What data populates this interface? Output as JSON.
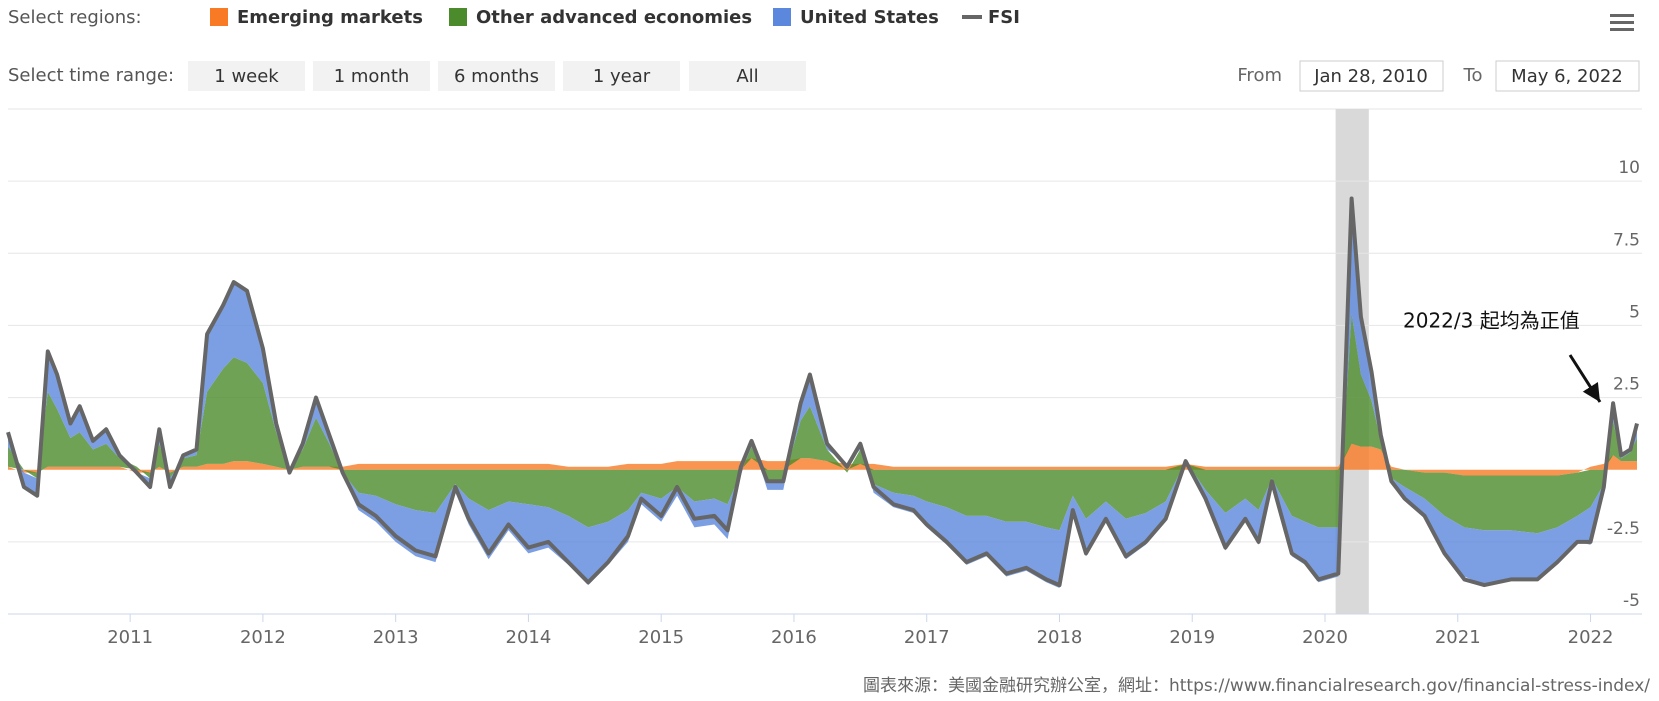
{
  "ui": {
    "regions_label": "Select regions:",
    "range_label": "Select time range:",
    "range_buttons": [
      "1 week",
      "1 month",
      "6 months",
      "1 year",
      "All"
    ],
    "from_label": "From",
    "from_value": "Jan 28, 2010",
    "to_label": "To",
    "to_value": "May 6, 2022"
  },
  "chart_data": {
    "type": "area",
    "stacked": true,
    "x": [
      2010.08,
      2010.2,
      2010.3,
      2010.38,
      2010.45,
      2010.55,
      2010.62,
      2010.72,
      2010.82,
      2010.92,
      2011.05,
      2011.15,
      2011.22,
      2011.3,
      2011.4,
      2011.5,
      2011.58,
      2011.7,
      2011.78,
      2011.88,
      2012.0,
      2012.1,
      2012.2,
      2012.3,
      2012.4,
      2012.5,
      2012.6,
      2012.72,
      2012.85,
      2013.0,
      2013.15,
      2013.3,
      2013.45,
      2013.55,
      2013.7,
      2013.85,
      2014.0,
      2014.15,
      2014.3,
      2014.45,
      2014.6,
      2014.75,
      2014.85,
      2015.0,
      2015.12,
      2015.25,
      2015.4,
      2015.5,
      2015.6,
      2015.68,
      2015.8,
      2015.92,
      2016.05,
      2016.12,
      2016.25,
      2016.4,
      2016.5,
      2016.6,
      2016.75,
      2016.9,
      2017.0,
      2017.15,
      2017.3,
      2017.45,
      2017.6,
      2017.75,
      2017.9,
      2018.0,
      2018.1,
      2018.2,
      2018.35,
      2018.5,
      2018.65,
      2018.8,
      2018.95,
      2019.1,
      2019.25,
      2019.4,
      2019.5,
      2019.6,
      2019.75,
      2019.85,
      2019.95,
      2020.1,
      2020.2,
      2020.27,
      2020.35,
      2020.42,
      2020.5,
      2020.6,
      2020.75,
      2020.9,
      2021.05,
      2021.2,
      2021.4,
      2021.6,
      2021.75,
      2021.9,
      2022.0,
      2022.1,
      2022.17,
      2022.23,
      2022.3,
      2022.35
    ],
    "series": [
      {
        "name": "Emerging markets",
        "color": "#f87a24",
        "values": [
          0.1,
          -0.1,
          -0.1,
          0.1,
          0.1,
          0.1,
          0.1,
          0.1,
          0.1,
          0.1,
          -0.1,
          -0.1,
          0.1,
          -0.1,
          0.1,
          0.1,
          0.2,
          0.2,
          0.3,
          0.3,
          0.2,
          0.1,
          0.0,
          0.1,
          0.1,
          0.1,
          0.1,
          0.2,
          0.2,
          0.2,
          0.2,
          0.2,
          0.2,
          0.2,
          0.2,
          0.2,
          0.2,
          0.2,
          0.1,
          0.1,
          0.1,
          0.2,
          0.2,
          0.2,
          0.3,
          0.3,
          0.3,
          0.3,
          0.3,
          0.4,
          0.3,
          0.3,
          0.4,
          0.4,
          0.3,
          0.2,
          0.2,
          0.2,
          0.1,
          0.1,
          0.1,
          0.1,
          0.1,
          0.1,
          0.1,
          0.1,
          0.1,
          0.1,
          0.1,
          0.1,
          0.1,
          0.1,
          0.1,
          0.1,
          0.2,
          0.1,
          0.1,
          0.1,
          0.1,
          0.1,
          0.1,
          0.1,
          0.1,
          0.1,
          0.9,
          0.8,
          0.8,
          0.7,
          0.1,
          0.0,
          -0.1,
          -0.1,
          -0.2,
          -0.2,
          -0.2,
          -0.2,
          -0.2,
          -0.1,
          0.1,
          0.2,
          0.5,
          0.3,
          0.3,
          0.3
        ]
      },
      {
        "name": "Other advanced economies",
        "color": "#4b8b2b",
        "values": [
          0.7,
          0.0,
          -0.2,
          2.6,
          2.0,
          1.0,
          1.2,
          0.6,
          0.8,
          0.3,
          0.1,
          -0.2,
          0.8,
          -0.2,
          0.3,
          0.4,
          2.5,
          3.3,
          3.6,
          3.4,
          2.8,
          1.2,
          0.0,
          0.6,
          1.7,
          0.8,
          -0.1,
          -0.8,
          -0.9,
          -1.2,
          -1.4,
          -1.5,
          -0.5,
          -1.0,
          -1.4,
          -1.1,
          -1.2,
          -1.3,
          -1.6,
          -2.0,
          -1.8,
          -1.4,
          -0.8,
          -1.0,
          -0.6,
          -1.1,
          -1.0,
          -1.2,
          -0.1,
          0.4,
          -0.4,
          -0.4,
          1.3,
          1.8,
          0.4,
          -0.1,
          0.5,
          -0.5,
          -0.8,
          -0.9,
          -1.1,
          -1.3,
          -1.6,
          -1.6,
          -1.8,
          -1.8,
          -2.0,
          -2.1,
          -0.9,
          -1.7,
          -1.1,
          -1.7,
          -1.5,
          -1.1,
          0.1,
          -0.7,
          -1.5,
          -1.0,
          -1.4,
          -0.3,
          -1.6,
          -1.8,
          -2.0,
          -2.0,
          4.5,
          2.5,
          1.6,
          0.3,
          -0.3,
          -0.6,
          -0.9,
          -1.5,
          -1.8,
          -1.9,
          -1.9,
          -2.0,
          -1.8,
          -1.5,
          -1.3,
          -0.5,
          1.2,
          0.1,
          0.3,
          0.8
        ]
      },
      {
        "name": "United States",
        "color": "#5b87dc",
        "values": [
          0.5,
          -0.5,
          -0.6,
          1.4,
          1.2,
          0.5,
          0.9,
          0.3,
          0.5,
          0.1,
          -0.1,
          -0.3,
          0.5,
          -0.3,
          0.1,
          0.2,
          2.0,
          2.2,
          2.6,
          2.5,
          1.2,
          0.3,
          -0.1,
          0.2,
          0.7,
          0.3,
          -0.1,
          -0.6,
          -0.9,
          -1.3,
          -1.6,
          -1.7,
          -0.3,
          -0.9,
          -1.7,
          -1.0,
          -1.7,
          -1.4,
          -1.7,
          -2.0,
          -1.5,
          -1.1,
          -0.4,
          -0.8,
          -0.3,
          -0.9,
          -0.9,
          -1.2,
          -0.1,
          0.2,
          -0.3,
          -0.3,
          0.6,
          1.1,
          0.2,
          0.0,
          0.2,
          -0.3,
          -0.5,
          -0.6,
          -0.9,
          -1.3,
          -1.7,
          -1.4,
          -1.9,
          -1.7,
          -1.9,
          -2.0,
          -0.6,
          -1.3,
          -0.7,
          -1.4,
          -1.1,
          -0.7,
          0.0,
          -0.4,
          -1.3,
          -0.8,
          -1.2,
          -0.2,
          -1.4,
          -1.5,
          -1.9,
          -1.7,
          4.0,
          2.0,
          1.0,
          0.2,
          -0.2,
          -0.4,
          -0.6,
          -1.3,
          -1.7,
          -1.9,
          -1.7,
          -1.6,
          -1.2,
          -0.9,
          -1.3,
          -0.3,
          0.6,
          0.1,
          0.1,
          0.5
        ]
      },
      {
        "name": "FSI",
        "color": "#666666",
        "type": "line",
        "values": [
          1.3,
          -0.6,
          -0.9,
          4.1,
          3.3,
          1.6,
          2.2,
          1.0,
          1.4,
          0.5,
          -0.1,
          -0.6,
          1.4,
          -0.6,
          0.5,
          0.7,
          4.7,
          5.7,
          6.5,
          6.2,
          4.2,
          1.6,
          -0.1,
          0.9,
          2.5,
          1.2,
          -0.1,
          -1.2,
          -1.6,
          -2.3,
          -2.8,
          -3.0,
          -0.6,
          -1.7,
          -2.9,
          -1.9,
          -2.7,
          -2.5,
          -3.2,
          -3.9,
          -3.2,
          -2.3,
          -1.0,
          -1.6,
          -0.6,
          -1.7,
          -1.6,
          -2.1,
          0.1,
          1.0,
          -0.4,
          -0.4,
          2.3,
          3.3,
          0.9,
          0.1,
          0.9,
          -0.6,
          -1.2,
          -1.4,
          -1.9,
          -2.5,
          -3.2,
          -2.9,
          -3.6,
          -3.4,
          -3.8,
          -4.0,
          -1.4,
          -2.9,
          -1.7,
          -3.0,
          -2.5,
          -1.7,
          0.3,
          -1.0,
          -2.7,
          -1.7,
          -2.5,
          -0.4,
          -2.9,
          -3.2,
          -3.8,
          -3.6,
          9.4,
          5.3,
          3.4,
          1.2,
          -0.4,
          -1.0,
          -1.6,
          -2.9,
          -3.8,
          -4.0,
          -3.8,
          -3.8,
          -3.2,
          -2.5,
          -2.5,
          -0.6,
          2.3,
          0.5,
          0.7,
          1.6
        ]
      }
    ],
    "xlim": [
      2010.08,
      2022.35
    ],
    "xticks": [
      2011,
      2012,
      2013,
      2014,
      2015,
      2016,
      2017,
      2018,
      2019,
      2020,
      2021,
      2022
    ],
    "ylim": [
      -5,
      12.5
    ],
    "yticks": [
      -5,
      -2.5,
      2.5,
      5,
      7.5,
      10
    ],
    "grid": true,
    "plot_bands": [
      {
        "from": 2020.08,
        "to": 2020.33,
        "color": "#d9d9d9"
      }
    ],
    "legend_position": "top",
    "annotations": [
      {
        "text": "2022/3 起均為正值"
      }
    ],
    "source": "圖表來源：美國金融研究辦公室，網址：https://www.financialresearch.gov/financial-stress-index/"
  }
}
